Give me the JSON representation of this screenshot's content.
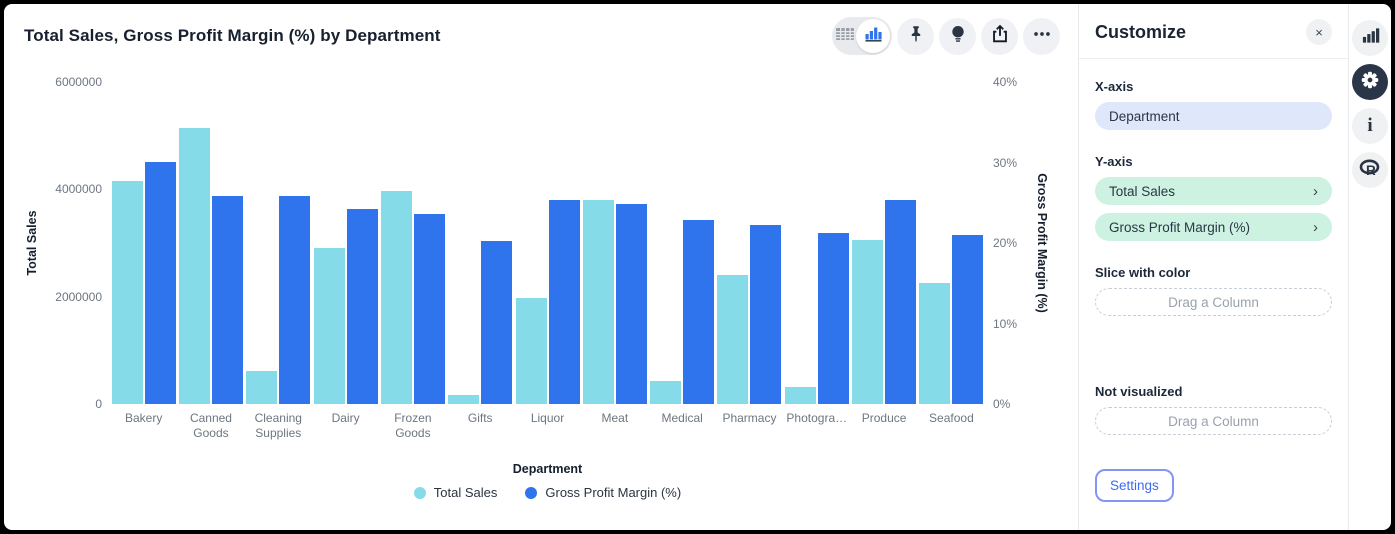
{
  "window": {
    "title": "Total Sales, Gross Profit Margin (%) by Department"
  },
  "toolbar": {
    "view_toggle": [
      {
        "icon": "table-icon",
        "selected": false
      },
      {
        "icon": "bar-chart-icon",
        "selected": true
      }
    ],
    "buttons": [
      {
        "icon": "pin-icon"
      },
      {
        "icon": "lightbulb-icon"
      },
      {
        "icon": "share-icon"
      },
      {
        "icon": "ellipsis-icon"
      }
    ]
  },
  "chart_data": {
    "type": "bar",
    "title": "Total Sales, Gross Profit Margin (%) by Department",
    "categories": [
      "Bakery",
      "Canned Goods",
      "Cleaning Supplies",
      "Dairy",
      "Frozen Goods",
      "Gifts",
      "Liquor",
      "Meat",
      "Medical",
      "Pharmacy",
      "Photogra…",
      "Produce",
      "Seafood"
    ],
    "series": [
      {
        "name": "Total Sales",
        "axis": "left",
        "color": "#85dbe7",
        "values": [
          4150000,
          5150000,
          620000,
          2900000,
          3970000,
          170000,
          1980000,
          3800000,
          430000,
          2400000,
          310000,
          3060000,
          2260000
        ]
      },
      {
        "name": "Gross Profit Margin (%)",
        "axis": "right",
        "color": "#2f74ec",
        "values": [
          30.1,
          25.9,
          25.8,
          24.2,
          23.6,
          20.2,
          25.4,
          24.8,
          22.8,
          22.3,
          21.2,
          25.3,
          21.0
        ]
      }
    ],
    "left_axis": {
      "label": "Total Sales",
      "max": 6000000,
      "ticks": [
        "6000000",
        "4000000",
        "2000000",
        "0"
      ]
    },
    "right_axis": {
      "label": "Gross Profit Margin (%)",
      "max": 40,
      "ticks": [
        "40%",
        "30%",
        "20%",
        "10%",
        "0%"
      ]
    },
    "xlabel": "Department",
    "legend_position": "bottom",
    "grid": false
  },
  "panel": {
    "title": "Customize",
    "close_icon": "×",
    "sections": {
      "xaxis": {
        "label": "X-axis",
        "value": "Department"
      },
      "yaxis": {
        "label": "Y-axis",
        "items": [
          {
            "label": "Total Sales",
            "chevron": "›"
          },
          {
            "label": "Gross Profit Margin (%)",
            "chevron": "›"
          }
        ]
      },
      "slice": {
        "label": "Slice with color",
        "placeholder": "Drag a Column"
      },
      "not_visualized": {
        "label": "Not visualized",
        "placeholder": "Drag a Column"
      }
    },
    "settings_button": "Settings"
  },
  "sidebar": {
    "icons": [
      {
        "name": "bar-chart-icon",
        "active": false
      },
      {
        "name": "gear-icon",
        "active": true
      },
      {
        "name": "info-icon",
        "active": false
      },
      {
        "name": "r-logo-icon",
        "active": false
      }
    ]
  },
  "colors": {
    "total_sales": "#85dbe7",
    "gross_profit_margin": "#2f74ec",
    "accent": "#3d6bf3"
  }
}
